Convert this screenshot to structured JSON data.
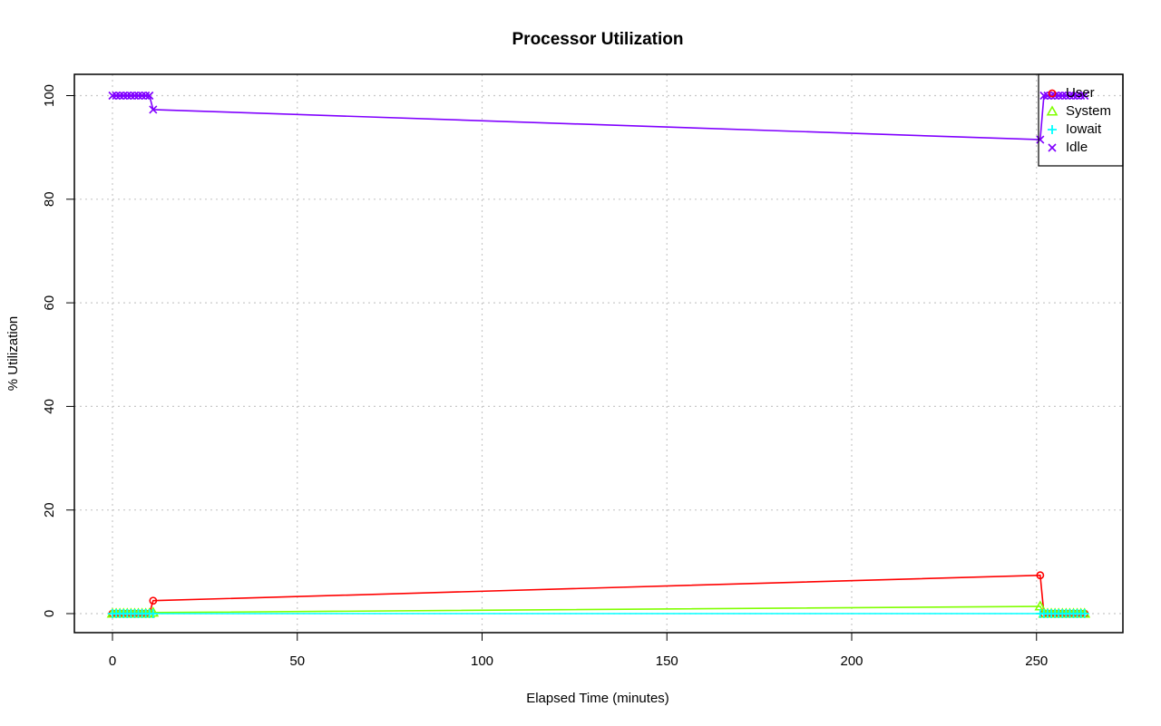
{
  "chart_data": {
    "type": "line",
    "title": "Processor Utilization",
    "xlabel": "Elapsed Time (minutes)",
    "ylabel": "% Utilization",
    "xlim": [
      0,
      263
    ],
    "ylim": [
      0,
      100
    ],
    "x_ticks": [
      0,
      50,
      100,
      150,
      200,
      250
    ],
    "y_ticks": [
      0,
      20,
      40,
      60,
      80,
      100
    ],
    "grid": true,
    "legend_position": "top-right",
    "x": [
      0,
      1,
      2,
      3,
      4,
      5,
      6,
      7,
      8,
      9,
      10,
      11,
      251,
      252,
      253,
      254,
      255,
      256,
      257,
      258,
      259,
      260,
      261,
      262,
      263
    ],
    "series": [
      {
        "name": "User",
        "color": "#FF0000",
        "marker": "circle",
        "values": [
          0,
          0,
          0,
          0,
          0,
          0,
          0,
          0,
          0,
          0,
          0,
          2.5,
          7.4,
          0,
          0,
          0,
          0,
          0,
          0,
          0,
          0,
          0,
          0,
          0,
          0
        ]
      },
      {
        "name": "System",
        "color": "#80FF00",
        "marker": "triangle",
        "values": [
          0,
          0,
          0,
          0,
          0,
          0,
          0,
          0,
          0,
          0,
          0,
          0.2,
          1.4,
          0,
          0,
          0,
          0,
          0,
          0,
          0,
          0,
          0,
          0,
          0,
          0
        ]
      },
      {
        "name": "Iowait",
        "color": "#00FFFF",
        "marker": "plus",
        "values": [
          0,
          0,
          0,
          0,
          0,
          0,
          0,
          0,
          0,
          0,
          0,
          0,
          0,
          0,
          0,
          0,
          0,
          0,
          0,
          0,
          0,
          0,
          0,
          0,
          0
        ]
      },
      {
        "name": "Idle",
        "color": "#8000FF",
        "marker": "cross",
        "values": [
          100,
          100,
          100,
          100,
          100,
          100,
          100,
          100,
          100,
          100,
          100,
          97.3,
          91.5,
          100,
          100,
          100,
          100,
          100,
          100,
          100,
          100,
          100,
          100,
          100,
          100
        ]
      }
    ]
  }
}
